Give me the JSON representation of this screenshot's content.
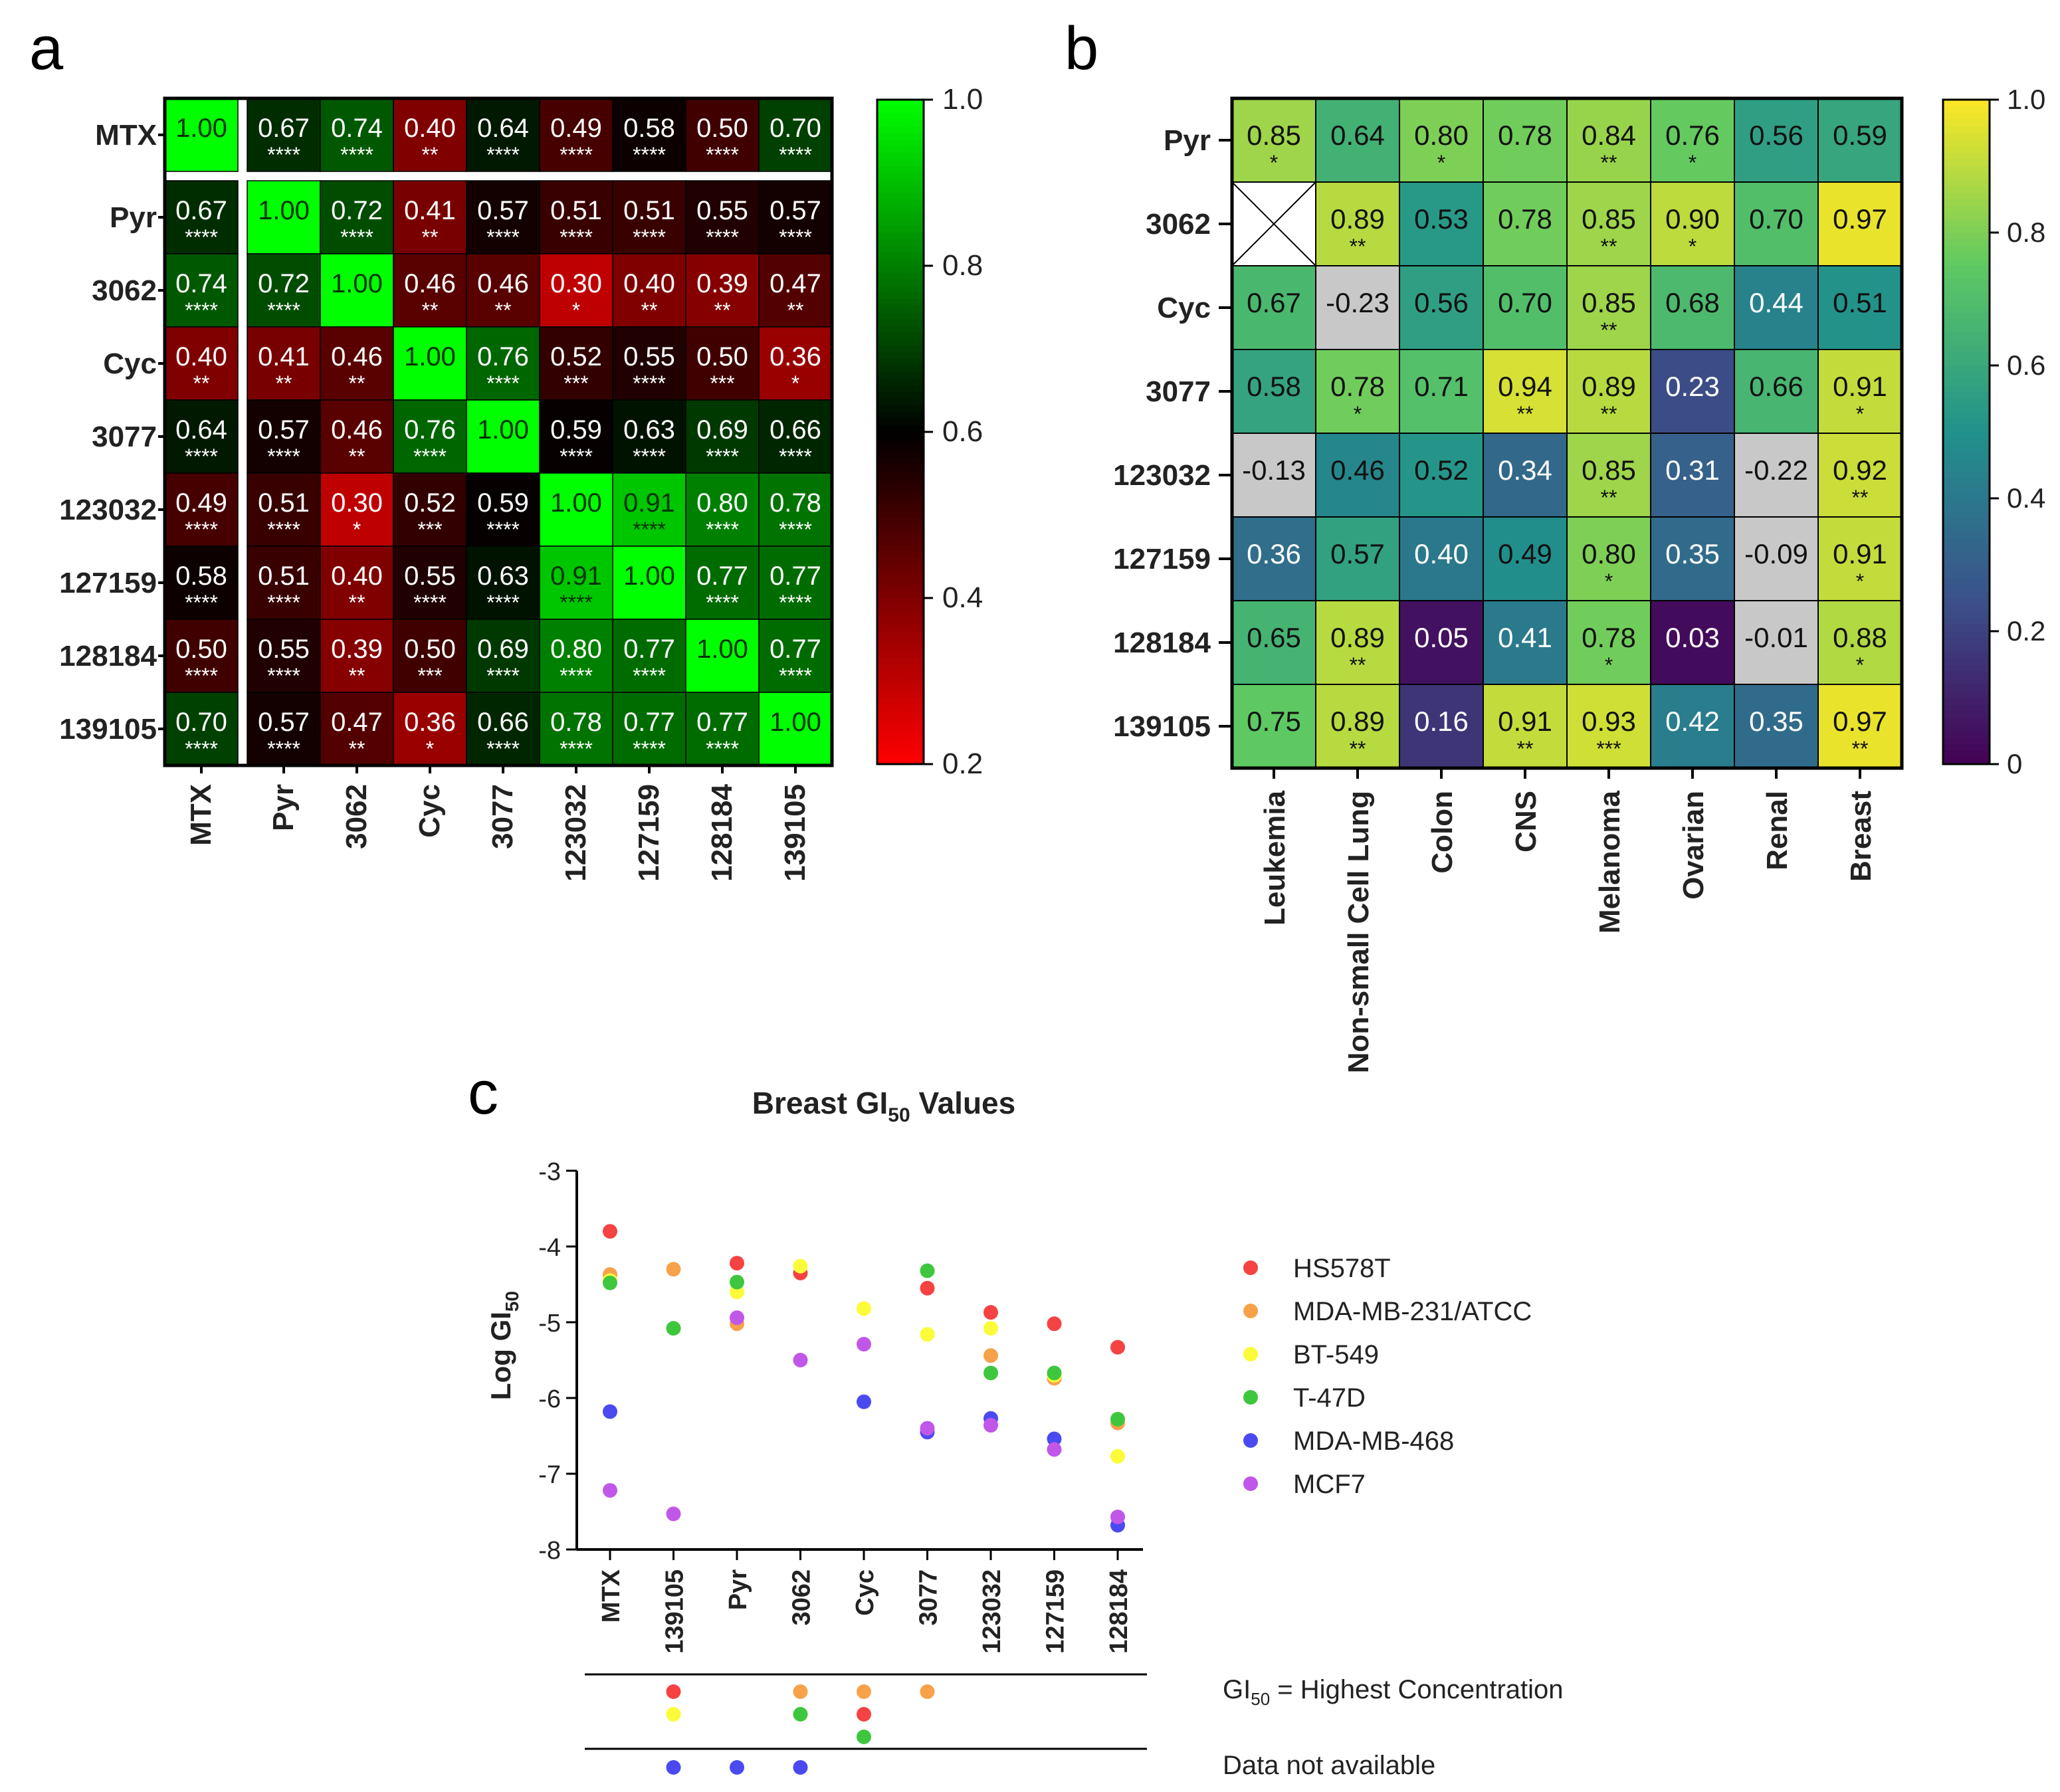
{
  "panels": {
    "a": "a",
    "b": "b",
    "c": "c"
  },
  "colors": {
    "heat_a": [
      "#ff0000",
      "#000000",
      "#00ff00"
    ],
    "viridis": [
      "#440154",
      "#3b528b",
      "#21918c",
      "#5ec962",
      "#fde725"
    ],
    "na_cell": "#c8c8c8",
    "series": [
      "#f54242",
      "#f7a24a",
      "#fbfb3a",
      "#3ec73e",
      "#4a4af0",
      "#c157e8"
    ]
  },
  "chart_data": [
    {
      "id": "a",
      "type": "heatmap",
      "title": "",
      "rows": [
        "MTX",
        "Pyr",
        "3062",
        "Cyc",
        "3077",
        "123032",
        "127159",
        "128184",
        "139105"
      ],
      "cols": [
        "MTX",
        "Pyr",
        "3062",
        "Cyc",
        "3077",
        "123032",
        "127159",
        "128184",
        "139105"
      ],
      "values": [
        [
          1.0,
          0.67,
          0.74,
          0.4,
          0.64,
          0.49,
          0.58,
          0.5,
          0.7
        ],
        [
          0.67,
          1.0,
          0.72,
          0.41,
          0.57,
          0.51,
          0.51,
          0.55,
          0.57
        ],
        [
          0.74,
          0.72,
          1.0,
          0.46,
          0.46,
          0.3,
          0.4,
          0.39,
          0.47
        ],
        [
          0.4,
          0.41,
          0.46,
          1.0,
          0.76,
          0.52,
          0.55,
          0.5,
          0.36
        ],
        [
          0.64,
          0.57,
          0.46,
          0.76,
          1.0,
          0.59,
          0.63,
          0.69,
          0.66
        ],
        [
          0.49,
          0.51,
          0.3,
          0.52,
          0.59,
          1.0,
          0.91,
          0.8,
          0.78
        ],
        [
          0.58,
          0.51,
          0.4,
          0.55,
          0.63,
          0.91,
          1.0,
          0.77,
          0.77
        ],
        [
          0.5,
          0.55,
          0.39,
          0.5,
          0.69,
          0.8,
          0.77,
          1.0,
          0.77
        ],
        [
          0.7,
          0.57,
          0.47,
          0.36,
          0.66,
          0.78,
          0.77,
          0.77,
          1.0
        ]
      ],
      "labels": [
        [
          "1.00",
          "0.67",
          "0.74",
          "0.40",
          "0.64",
          "0.49",
          "0.58",
          "0.50",
          "0.70"
        ],
        [
          "0.67",
          "1.00",
          "0.72",
          "0.41",
          "0.57",
          "0.51",
          "0.51",
          "0.55",
          "0.57"
        ],
        [
          "0.74",
          "0.72",
          "1.00",
          "0.46",
          "0.46",
          "0.30",
          "0.40",
          "0.39",
          "0.47"
        ],
        [
          "0.40",
          "0.41",
          "0.46",
          "1.00",
          "0.76",
          "0.52",
          "0.55",
          "0.50",
          "0.36"
        ],
        [
          "0.64",
          "0.57",
          "0.46",
          "0.76",
          "1.00",
          "0.59",
          "0.63",
          "0.69",
          "0.66"
        ],
        [
          "0.49",
          "0.51",
          "0.30",
          "0.52",
          "0.59",
          "1.00",
          "0.91",
          "0.80",
          "0.78"
        ],
        [
          "0.58",
          "0.51",
          "0.40",
          "0.55",
          "0.63",
          "0.91",
          "1.00",
          "0.77",
          "0.77"
        ],
        [
          "0.50",
          "0.55",
          "0.39",
          "0.50",
          "0.69",
          "0.80",
          "0.77",
          "1.00",
          "0.77"
        ],
        [
          "0.70",
          "0.57",
          "0.47",
          "0.36",
          "0.66",
          "0.78",
          "0.77",
          "0.77",
          "1.00"
        ]
      ],
      "sig": [
        [
          "",
          "****",
          "****",
          "**",
          "****",
          "****",
          "****",
          "****",
          "****"
        ],
        [
          "****",
          "",
          "****",
          "**",
          "****",
          "****",
          "****",
          "****",
          "****"
        ],
        [
          "****",
          "****",
          "",
          "**",
          "**",
          "*",
          "**",
          "**",
          "**"
        ],
        [
          "**",
          "**",
          "**",
          "",
          "****",
          "***",
          "****",
          "***",
          "*"
        ],
        [
          "****",
          "****",
          "**",
          "****",
          "",
          "****",
          "****",
          "****",
          "****"
        ],
        [
          "****",
          "****",
          "*",
          "***",
          "****",
          "",
          "****",
          "****",
          "****"
        ],
        [
          "****",
          "****",
          "**",
          "****",
          "****",
          "****",
          "",
          "****",
          "****"
        ],
        [
          "****",
          "****",
          "**",
          "***",
          "****",
          "****",
          "****",
          "",
          "****"
        ],
        [
          "****",
          "****",
          "**",
          "*",
          "****",
          "****",
          "****",
          "****",
          ""
        ]
      ],
      "colorbar": {
        "range": [
          0.2,
          1.0
        ],
        "ticks": [
          "1.0",
          "0.8",
          "0.6",
          "0.4",
          "0.2"
        ],
        "tick_values": [
          1.0,
          0.8,
          0.6,
          0.4,
          0.2
        ]
      }
    },
    {
      "id": "b",
      "type": "heatmap",
      "title": "",
      "rows": [
        "Pyr",
        "3062",
        "Cyc",
        "3077",
        "123032",
        "127159",
        "128184",
        "139105"
      ],
      "cols": [
        "Leukemia",
        "Non-small Cell Lung",
        "Colon",
        "CNS",
        "Melanoma",
        "Ovarian",
        "Renal",
        "Breast"
      ],
      "values": [
        [
          0.85,
          0.64,
          0.8,
          0.78,
          0.84,
          0.76,
          0.56,
          0.59
        ],
        [
          null,
          0.89,
          0.53,
          0.78,
          0.85,
          0.9,
          0.7,
          0.97
        ],
        [
          0.67,
          -0.23,
          0.56,
          0.7,
          0.85,
          0.68,
          0.44,
          0.51
        ],
        [
          0.58,
          0.78,
          0.71,
          0.94,
          0.89,
          0.23,
          0.66,
          0.91
        ],
        [
          -0.13,
          0.46,
          0.52,
          0.34,
          0.85,
          0.31,
          -0.22,
          0.92
        ],
        [
          0.36,
          0.57,
          0.4,
          0.49,
          0.8,
          0.35,
          -0.09,
          0.91
        ],
        [
          0.65,
          0.89,
          0.05,
          0.41,
          0.78,
          0.03,
          -0.01,
          0.88
        ],
        [
          0.75,
          0.89,
          0.16,
          0.91,
          0.93,
          0.42,
          0.35,
          0.97
        ]
      ],
      "labels": [
        [
          "0.85",
          "0.64",
          "0.80",
          "0.78",
          "0.84",
          "0.76",
          "0.56",
          "0.59"
        ],
        [
          "",
          "0.89",
          "0.53",
          "0.78",
          "0.85",
          "0.90",
          "0.70",
          "0.97"
        ],
        [
          "0.67",
          "-0.23",
          "0.56",
          "0.70",
          "0.85",
          "0.68",
          "0.44",
          "0.51"
        ],
        [
          "0.58",
          "0.78",
          "0.71",
          "0.94",
          "0.89",
          "0.23",
          "0.66",
          "0.91"
        ],
        [
          "-0.13",
          "0.46",
          "0.52",
          "0.34",
          "0.85",
          "0.31",
          "-0.22",
          "0.92"
        ],
        [
          "0.36",
          "0.57",
          "0.40",
          "0.49",
          "0.80",
          "0.35",
          "-0.09",
          "0.91"
        ],
        [
          "0.65",
          "0.89",
          "0.05",
          "0.41",
          "0.78",
          "0.03",
          "-0.01",
          "0.88"
        ],
        [
          "0.75",
          "0.89",
          "0.16",
          "0.91",
          "0.93",
          "0.42",
          "0.35",
          "0.97"
        ]
      ],
      "sig": [
        [
          "*",
          "",
          "*",
          "",
          "**",
          "*",
          "",
          ""
        ],
        [
          "",
          "**",
          "",
          "",
          "**",
          "*",
          "",
          ""
        ],
        [
          "",
          "",
          "",
          "",
          "**",
          "",
          "",
          ""
        ],
        [
          "",
          "*",
          "",
          "**",
          "**",
          "",
          "",
          "*"
        ],
        [
          "",
          "",
          "",
          "",
          "**",
          "",
          "",
          "**"
        ],
        [
          "",
          "",
          "",
          "",
          "*",
          "",
          "",
          "*"
        ],
        [
          "",
          "**",
          "",
          "",
          "*",
          "",
          "",
          "*"
        ],
        [
          "",
          "**",
          "",
          "**",
          "***",
          "",
          "",
          "**"
        ]
      ],
      "colorbar": {
        "range": [
          0,
          1.0
        ],
        "ticks": [
          "1.0",
          "0.8",
          "0.6",
          "0.4",
          "0.2",
          "0"
        ],
        "tick_values": [
          1.0,
          0.8,
          0.6,
          0.4,
          0.2,
          0.0
        ]
      }
    },
    {
      "id": "c",
      "type": "scatter",
      "title_main": "Breast GI",
      "title_sub": "50",
      "title_tail": " Values",
      "ylabel_main": "Log GI",
      "ylabel_sub": "50",
      "ylim": [
        -8,
        -3
      ],
      "yticks": [
        "-3",
        "-4",
        "-5",
        "-6",
        "-7",
        "-8"
      ],
      "ytick_values": [
        -3,
        -4,
        -5,
        -6,
        -7,
        -8
      ],
      "categories": [
        "MTX",
        "139105",
        "Pyr",
        "3062",
        "Cyc",
        "3077",
        "123032",
        "127159",
        "128184"
      ],
      "series": [
        {
          "name": "HS578T",
          "values": [
            -3.8,
            null,
            -4.22,
            -4.35,
            null,
            -4.55,
            -4.87,
            -5.02,
            -5.33
          ]
        },
        {
          "name": "MDA-MB-231/ATCC",
          "values": [
            -4.37,
            -4.3,
            -5.02,
            null,
            null,
            null,
            -5.44,
            -5.74,
            -6.33
          ]
        },
        {
          "name": "BT-549",
          "values": [
            -4.45,
            null,
            -4.6,
            -4.26,
            -4.82,
            -5.16,
            -5.08,
            -5.7,
            -6.77
          ]
        },
        {
          "name": "T-47D",
          "values": [
            -4.48,
            -5.08,
            -4.47,
            null,
            null,
            -4.32,
            -5.67,
            -5.67,
            -6.28
          ]
        },
        {
          "name": "MDA-MB-468",
          "values": [
            -6.18,
            null,
            null,
            null,
            -6.05,
            -6.45,
            -6.27,
            -6.54,
            -7.68
          ]
        },
        {
          "name": "MCF7",
          "values": [
            -7.22,
            -7.53,
            -4.94,
            -5.5,
            -5.29,
            -6.4,
            -6.36,
            -6.68,
            -7.57
          ]
        }
      ],
      "highest_concentration": {
        "label_main": "GI",
        "label_sub": "50",
        "label_tail": " = Highest Concentration",
        "points": [
          {
            "category": "139105",
            "series": "HS578T"
          },
          {
            "category": "139105",
            "series": "BT-549"
          },
          {
            "category": "3062",
            "series": "MDA-MB-231/ATCC"
          },
          {
            "category": "3062",
            "series": "T-47D"
          },
          {
            "category": "Cyc",
            "series": "MDA-MB-231/ATCC"
          },
          {
            "category": "Cyc",
            "series": "HS578T"
          },
          {
            "category": "Cyc",
            "series": "T-47D"
          },
          {
            "category": "3077",
            "series": "MDA-MB-231/ATCC"
          }
        ]
      },
      "not_available": {
        "label": "Data not available",
        "points": [
          {
            "category": "139105",
            "series": "MDA-MB-468"
          },
          {
            "category": "Pyr",
            "series": "MDA-MB-468"
          },
          {
            "category": "3062",
            "series": "MDA-MB-468"
          }
        ]
      }
    }
  ]
}
